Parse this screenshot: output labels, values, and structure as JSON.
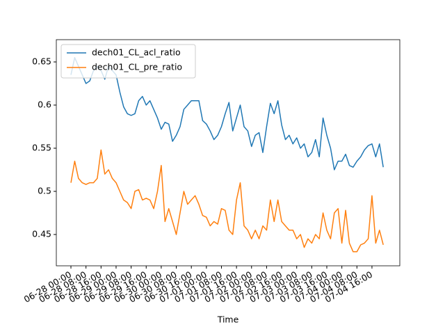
{
  "chart_data": {
    "type": "line",
    "xlabel": "Time",
    "x": [
      "06-28 00:00",
      "06-28 02:00",
      "06-28 04:00",
      "06-28 06:00",
      "06-28 08:00",
      "06-28 10:00",
      "06-28 12:00",
      "06-28 14:00",
      "06-28 16:00",
      "06-28 18:00",
      "06-28 20:00",
      "06-28 22:00",
      "06-29 00:00",
      "06-29 02:00",
      "06-29 04:00",
      "06-29 06:00",
      "06-29 08:00",
      "06-29 10:00",
      "06-29 12:00",
      "06-29 14:00",
      "06-29 16:00",
      "06-29 18:00",
      "06-29 20:00",
      "06-29 22:00",
      "06-30 00:00",
      "06-30 02:00",
      "06-30 04:00",
      "06-30 06:00",
      "06-30 08:00",
      "06-30 10:00",
      "06-30 12:00",
      "06-30 14:00",
      "06-30 16:00",
      "06-30 18:00",
      "06-30 20:00",
      "06-30 22:00",
      "07-01 00:00",
      "07-01 02:00",
      "07-01 04:00",
      "07-01 06:00",
      "07-01 08:00",
      "07-01 10:00",
      "07-01 12:00",
      "07-01 14:00",
      "07-01 16:00",
      "07-01 18:00",
      "07-01 20:00",
      "07-01 22:00",
      "07-02 00:00",
      "07-02 02:00",
      "07-02 04:00",
      "07-02 06:00",
      "07-02 08:00",
      "07-02 10:00",
      "07-02 12:00",
      "07-02 14:00",
      "07-02 16:00",
      "07-02 18:00",
      "07-02 20:00",
      "07-02 22:00",
      "07-03 00:00",
      "07-03 02:00",
      "07-03 04:00",
      "07-03 06:00",
      "07-03 08:00",
      "07-03 10:00",
      "07-03 12:00",
      "07-03 14:00",
      "07-03 16:00",
      "07-03 18:00",
      "07-03 20:00",
      "07-03 22:00",
      "07-04 00:00",
      "07-04 02:00",
      "07-04 04:00",
      "07-04 06:00",
      "07-04 08:00",
      "07-04 10:00",
      "07-04 12:00",
      "07-04 14:00",
      "07-04 16:00",
      "07-04 18:00",
      "07-04 20:00",
      "07-04 22:00"
    ],
    "series": [
      {
        "name": "dech01_CL_acl_ratio",
        "color": "#1f77b4",
        "values": [
          0.635,
          0.655,
          0.645,
          0.635,
          0.625,
          0.628,
          0.64,
          0.645,
          0.64,
          0.63,
          0.645,
          0.64,
          0.635,
          0.615,
          0.598,
          0.59,
          0.588,
          0.59,
          0.605,
          0.61,
          0.6,
          0.605,
          0.595,
          0.585,
          0.572,
          0.58,
          0.578,
          0.558,
          0.565,
          0.575,
          0.595,
          0.6,
          0.605,
          0.605,
          0.605,
          0.582,
          0.578,
          0.57,
          0.56,
          0.565,
          0.575,
          0.59,
          0.603,
          0.57,
          0.585,
          0.6,
          0.575,
          0.57,
          0.552,
          0.565,
          0.568,
          0.545,
          0.575,
          0.602,
          0.59,
          0.605,
          0.577,
          0.56,
          0.565,
          0.555,
          0.562,
          0.55,
          0.555,
          0.54,
          0.545,
          0.56,
          0.54,
          0.585,
          0.565,
          0.55,
          0.525,
          0.535,
          0.535,
          0.543,
          0.53,
          0.528,
          0.535,
          0.54,
          0.548,
          0.553,
          0.555,
          0.54,
          0.555,
          0.528
        ]
      },
      {
        "name": "dech01_CL_pre_ratio",
        "color": "#ff7f0e",
        "values": [
          0.51,
          0.535,
          0.515,
          0.51,
          0.508,
          0.51,
          0.51,
          0.515,
          0.548,
          0.52,
          0.525,
          0.515,
          0.51,
          0.5,
          0.49,
          0.487,
          0.48,
          0.5,
          0.502,
          0.49,
          0.492,
          0.49,
          0.48,
          0.5,
          0.53,
          0.465,
          0.48,
          0.465,
          0.45,
          0.475,
          0.5,
          0.485,
          0.49,
          0.495,
          0.485,
          0.472,
          0.47,
          0.46,
          0.465,
          0.462,
          0.48,
          0.478,
          0.455,
          0.45,
          0.49,
          0.51,
          0.46,
          0.455,
          0.445,
          0.455,
          0.445,
          0.46,
          0.455,
          0.49,
          0.465,
          0.49,
          0.465,
          0.46,
          0.455,
          0.455,
          0.445,
          0.45,
          0.435,
          0.445,
          0.44,
          0.45,
          0.445,
          0.475,
          0.455,
          0.445,
          0.475,
          0.48,
          0.44,
          0.478,
          0.44,
          0.43,
          0.43,
          0.438,
          0.44,
          0.445,
          0.495,
          0.44,
          0.455,
          0.438
        ]
      }
    ],
    "xlim": [
      "06-27 16:14",
      "07-05 06:48"
    ],
    "xticks": [
      "06-28 00:00",
      "06-28 08:00",
      "06-28 16:00",
      "06-29 00:00",
      "06-29 08:00",
      "06-29 16:00",
      "06-30 00:00",
      "06-30 08:00",
      "06-30 16:00",
      "07-01 00:00",
      "07-01 08:00",
      "07-01 16:00",
      "07-02 00:00",
      "07-02 08:00",
      "07-02 16:00",
      "07-03 00:00",
      "07-03 08:00",
      "07-03 16:00",
      "07-04 00:00",
      "07-04 08:00",
      "07-04 16:00"
    ],
    "ylim": [
      0.4137,
      0.6758
    ],
    "yticks": [
      0.45,
      0.5,
      0.55,
      0.6,
      0.65
    ],
    "legend": "upper left"
  }
}
